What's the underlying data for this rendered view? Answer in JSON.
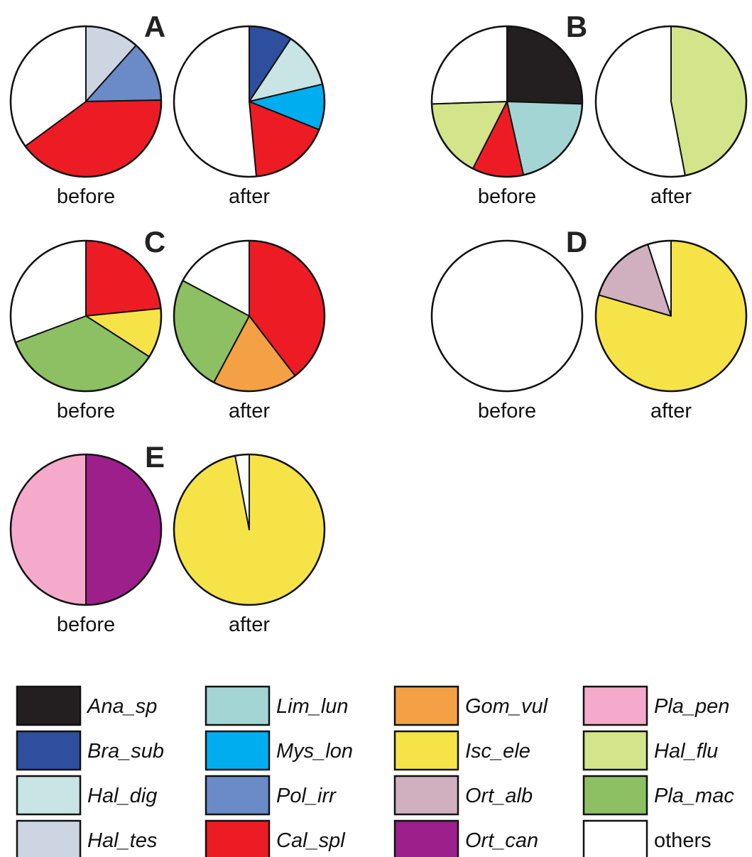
{
  "species": [
    {
      "key": "Ana_sp",
      "label": "Ana_sp",
      "color": "#231f20",
      "italic": true
    },
    {
      "key": "Bra_sub",
      "label": "Bra_sub",
      "color": "#2e4f9e",
      "italic": true
    },
    {
      "key": "Hal_dig",
      "label": "Hal_dig",
      "color": "#c8e4e4",
      "italic": true
    },
    {
      "key": "Hal_tes",
      "label": "Hal_tes",
      "color": "#cdd5e2",
      "italic": true
    },
    {
      "key": "Lim_lun",
      "label": "Lim_lun",
      "color": "#a3d5d4",
      "italic": true
    },
    {
      "key": "Mys_lon",
      "label": "Mys_lon",
      "color": "#00aeef",
      "italic": true
    },
    {
      "key": "Pol_irr",
      "label": "Pol_irr",
      "color": "#6b8bc8",
      "italic": true
    },
    {
      "key": "Cal_spl",
      "label": "Cal_spl",
      "color": "#ed1c24",
      "italic": true
    },
    {
      "key": "Gom_vul",
      "label": "Gom_vul",
      "color": "#f4a146",
      "italic": true
    },
    {
      "key": "Isc_ele",
      "label": "Isc_ele",
      "color": "#f6e347",
      "italic": true
    },
    {
      "key": "Ort_alb",
      "label": "Ort_alb",
      "color": "#d0b0bf",
      "italic": true
    },
    {
      "key": "Ort_can",
      "label": "Ort_can",
      "color": "#9d1f8b",
      "italic": true
    },
    {
      "key": "Pla_pen",
      "label": "Pla_pen",
      "color": "#f5aacb",
      "italic": true
    },
    {
      "key": "Hal_flu",
      "label": "Hal_flu",
      "color": "#d3e48a",
      "italic": true
    },
    {
      "key": "Pla_mac",
      "label": "Pla_mac",
      "color": "#8cc063",
      "italic": true
    },
    {
      "key": "others",
      "label": "others",
      "color": "#ffffff",
      "italic": false
    }
  ],
  "chart_data": [
    {
      "type": "pie",
      "panel": "A",
      "pies": [
        {
          "caption": "before",
          "slices": [
            {
              "species": "Hal_tes",
              "value": 11.6
            },
            {
              "species": "Pol_irr",
              "value": 13.1
            },
            {
              "species": "Cal_spl",
              "value": 40.2
            },
            {
              "species": "others",
              "value": 35.1
            }
          ]
        },
        {
          "caption": "after",
          "slices": [
            {
              "species": "Bra_sub",
              "value": 9.3
            },
            {
              "species": "Hal_dig",
              "value": 12.0
            },
            {
              "species": "Mys_lon",
              "value": 9.8
            },
            {
              "species": "Cal_spl",
              "value": 17.4
            },
            {
              "species": "others",
              "value": 51.5
            }
          ]
        }
      ]
    },
    {
      "type": "pie",
      "panel": "B",
      "pies": [
        {
          "caption": "before",
          "slices": [
            {
              "species": "Ana_sp",
              "value": 25.5
            },
            {
              "species": "Lim_lun",
              "value": 21.0
            },
            {
              "species": "Cal_spl",
              "value": 11.0
            },
            {
              "species": "Hal_flu",
              "value": 17.0
            },
            {
              "species": "others",
              "value": 25.5
            }
          ]
        },
        {
          "caption": "after",
          "slices": [
            {
              "species": "Hal_flu",
              "value": 47.0
            },
            {
              "species": "others",
              "value": 53.0
            }
          ]
        }
      ]
    },
    {
      "type": "pie",
      "panel": "C",
      "pies": [
        {
          "caption": "before",
          "slices": [
            {
              "species": "Cal_spl",
              "value": 23.4
            },
            {
              "species": "Isc_ele",
              "value": 10.7
            },
            {
              "species": "Pla_mac",
              "value": 35.2
            },
            {
              "species": "others",
              "value": 30.7
            }
          ]
        },
        {
          "caption": "after",
          "slices": [
            {
              "species": "Cal_spl",
              "value": 39.6
            },
            {
              "species": "Gom_vul",
              "value": 18.2
            },
            {
              "species": "Pla_mac",
              "value": 25.0
            },
            {
              "species": "others",
              "value": 17.2
            }
          ]
        }
      ]
    },
    {
      "type": "pie",
      "panel": "D",
      "pies": [
        {
          "caption": "before",
          "slices": [
            {
              "species": "others",
              "value": 100
            }
          ]
        },
        {
          "caption": "after",
          "slices": [
            {
              "species": "Isc_ele",
              "value": 79.5
            },
            {
              "species": "Ort_alb",
              "value": 15.5
            },
            {
              "species": "others",
              "value": 5.0
            }
          ]
        }
      ]
    },
    {
      "type": "pie",
      "panel": "E",
      "pies": [
        {
          "caption": "before",
          "slices": [
            {
              "species": "Ort_can",
              "value": 50.0
            },
            {
              "species": "Pla_pen",
              "value": 50.0
            }
          ]
        },
        {
          "caption": "after",
          "slices": [
            {
              "species": "Isc_ele",
              "value": 97.0
            },
            {
              "species": "others",
              "value": 3.0
            }
          ]
        }
      ]
    }
  ]
}
